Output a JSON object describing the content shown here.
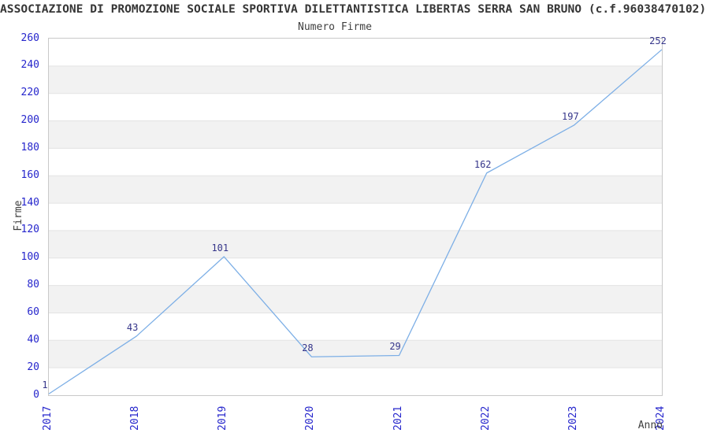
{
  "chart_data": {
    "type": "line",
    "title": "ASSOCIAZIONE DI PROMOZIONE SOCIALE SPORTIVA DILETTANTISTICA LIBERTAS SERRA SAN BRUNO (c.f.96038470102)",
    "subtitle": "Numero Firme",
    "xlabel": "Anno",
    "ylabel": "Firme",
    "categories": [
      "2017",
      "2018",
      "2019",
      "2020",
      "2021",
      "2022",
      "2023",
      "2024"
    ],
    "values": [
      1,
      43,
      101,
      28,
      29,
      162,
      197,
      252
    ],
    "data_labels": [
      "1",
      "43",
      "101",
      "28",
      "29",
      "162",
      "197",
      "252"
    ],
    "ylim": [
      0,
      260
    ],
    "ytick_step": 20,
    "ytick_labels": [
      "0",
      "20",
      "40",
      "60",
      "80",
      "100",
      "120",
      "140",
      "160",
      "180",
      "200",
      "220",
      "240",
      "260"
    ],
    "grid": "horizontal gridlines with alternating shaded bands",
    "legend": "none",
    "colors": {
      "line": "#7dafe6",
      "tick_label": "#2525cc",
      "data_label": "#35358a",
      "band": "#f2f2f2",
      "gridline": "#e3e3e3",
      "border": "#c9c9c9",
      "text": "#3f3f3f",
      "background": "#ffffff"
    }
  }
}
